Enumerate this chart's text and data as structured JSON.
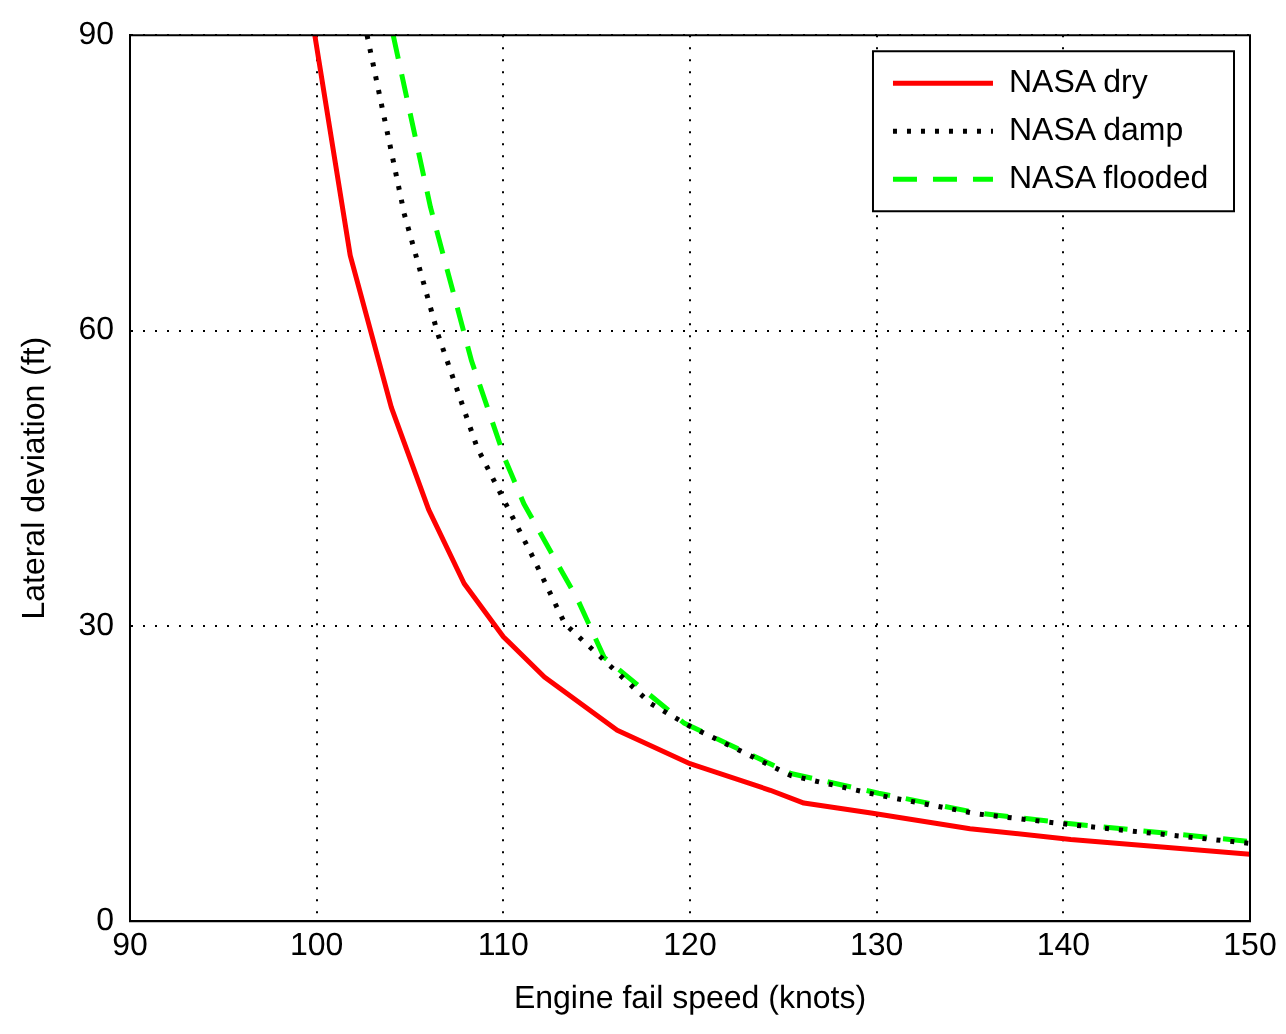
{
  "chart_data": {
    "type": "line",
    "xlabel": "Engine fail speed (knots)",
    "ylabel": "Lateral deviation (ft)",
    "xlim": [
      90,
      150
    ],
    "xticks": [
      90,
      100,
      110,
      120,
      130,
      140,
      150
    ],
    "ylim": [
      0,
      90
    ],
    "yticks": [
      0,
      30,
      60,
      90
    ],
    "grid": true,
    "legend": "top right",
    "marker": "none",
    "series": [
      {
        "name": "NASA dry",
        "color": "#ff0000",
        "line_style": "solid",
        "x": [
          99.9,
          101.8,
          104,
          106,
          107.9,
          110,
          112.2,
          116.1,
          120,
          124.3,
          126.1,
          129.7,
          135,
          140.4,
          150
        ],
        "values": [
          90,
          67.6,
          52.2,
          41.8,
          34.3,
          28.9,
          24.8,
          19.4,
          16,
          13.3,
          12,
          11,
          9.4,
          8.3,
          6.8
        ]
      },
      {
        "name": "NASA damp",
        "color": "#000000",
        "line_style": "dotted",
        "x": [
          102.7,
          104.7,
          106.5,
          108.6,
          111.5,
          113.3,
          117.9,
          120,
          125.4,
          130.1,
          135.4,
          140.4,
          150
        ],
        "values": [
          90,
          71.8,
          59.6,
          48.1,
          37.3,
          30.2,
          22.1,
          19.8,
          14.8,
          12.8,
          10.9,
          9.8,
          7.9
        ]
      },
      {
        "name": "NASA flooded",
        "color": "#00ff00",
        "line_style": "dashed",
        "x": [
          104.1,
          106.1,
          108.3,
          110.1,
          111.1,
          114,
          115.4,
          119.7,
          125.4,
          130.1,
          135.4,
          140.4,
          150
        ],
        "values": [
          90,
          72.5,
          56.9,
          46.9,
          42.4,
          32.6,
          26.8,
          20.1,
          15,
          13,
          11,
          9.9,
          8.1
        ]
      }
    ]
  }
}
